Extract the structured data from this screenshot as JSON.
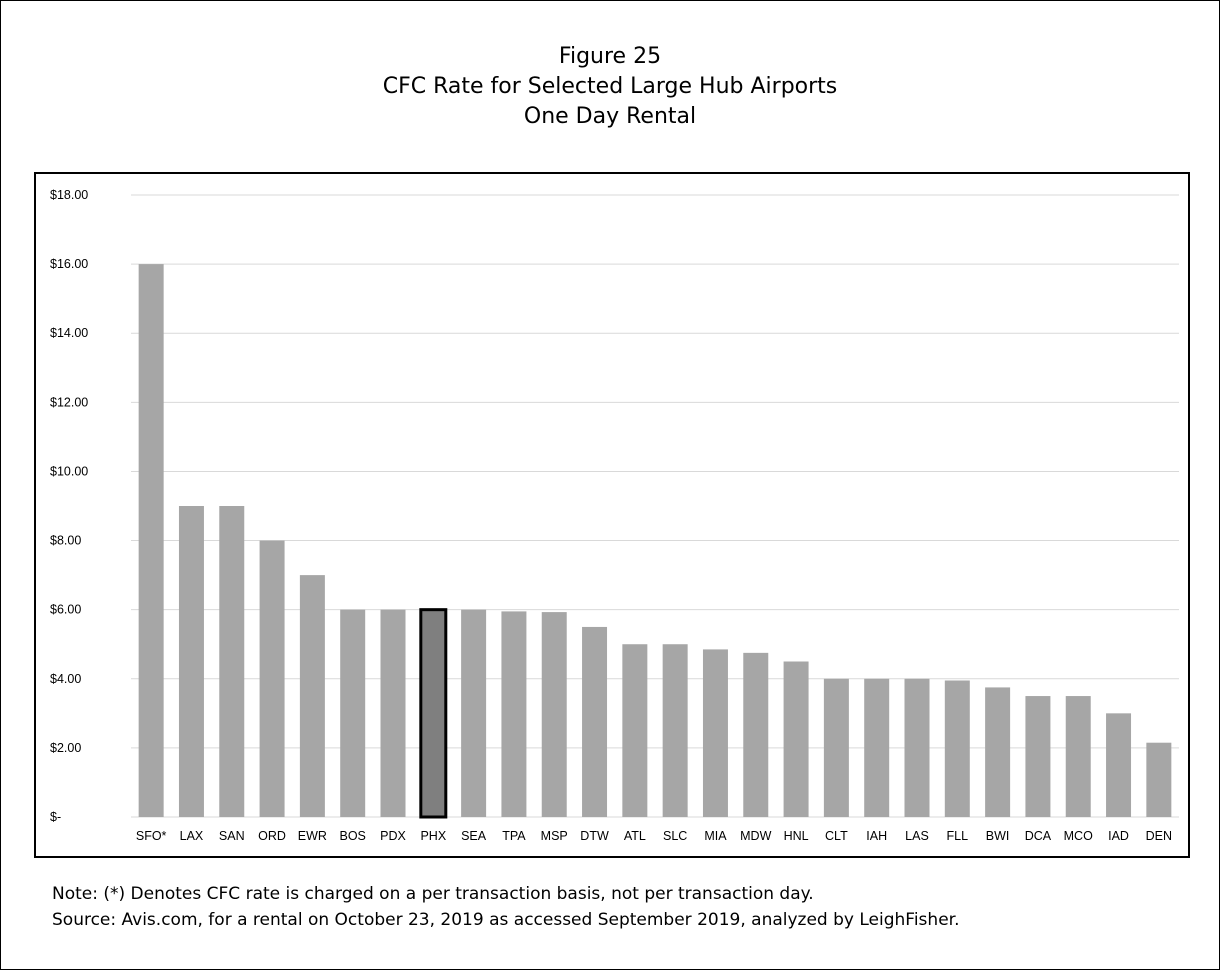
{
  "figure": {
    "number": "Figure 25",
    "title": "CFC Rate for Selected Large Hub Airports",
    "subtitle": "One Day Rental"
  },
  "notes": {
    "note": "Note: (*) Denotes CFC rate is charged on a per transaction basis, not per transaction day.",
    "source": "Source: Avis.com, for a rental on October 23, 2019 as accessed September 2019, analyzed by LeighFisher."
  },
  "chart_data": {
    "type": "bar",
    "categories": [
      "SFO*",
      "LAX",
      "SAN",
      "ORD",
      "EWR",
      "BOS",
      "PDX",
      "PHX",
      "SEA",
      "TPA",
      "MSP",
      "DTW",
      "ATL",
      "SLC",
      "MIA",
      "MDW",
      "HNL",
      "CLT",
      "IAH",
      "LAS",
      "FLL",
      "BWI",
      "DCA",
      "MCO",
      "IAD",
      "DEN"
    ],
    "values": [
      16.0,
      9.0,
      9.0,
      8.0,
      7.0,
      6.0,
      6.0,
      6.0,
      6.0,
      5.95,
      5.93,
      5.5,
      5.0,
      5.0,
      4.85,
      4.75,
      4.5,
      4.0,
      4.0,
      4.0,
      3.95,
      3.75,
      3.5,
      3.5,
      3.0,
      2.15
    ],
    "ylim": [
      0,
      18
    ],
    "yticks": [
      0,
      2,
      4,
      6,
      8,
      10,
      12,
      14,
      16,
      18
    ],
    "ytick_labels": [
      "$-",
      "$2.00",
      "$4.00",
      "$6.00",
      "$8.00",
      "$10.00",
      "$12.00",
      "$14.00",
      "$16.00",
      "$18.00"
    ],
    "highlight_category": "PHX",
    "grid": true,
    "colors": {
      "bar": "#a6a6a6",
      "highlight_bar": "#7f7f7f",
      "highlight_border": "#000000",
      "grid": "#d9d9d9"
    }
  }
}
